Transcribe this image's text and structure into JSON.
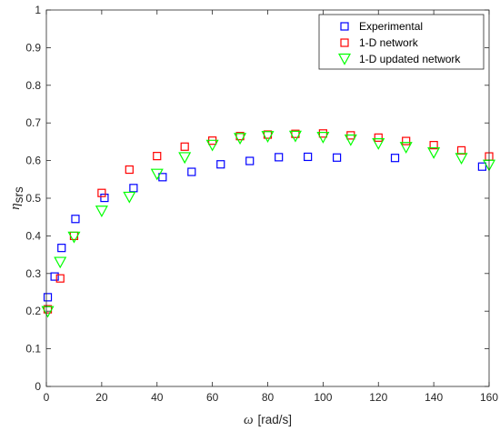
{
  "chart_data": {
    "type": "scatter",
    "title": "",
    "xlabel": {
      "symbol": "ω",
      "unit": "[rad/s]"
    },
    "ylabel": {
      "symbol": "η",
      "subscript": "srs"
    },
    "xlim": [
      0,
      160
    ],
    "ylim": [
      0,
      1
    ],
    "xticks": [
      0,
      20,
      40,
      60,
      80,
      100,
      120,
      140,
      160
    ],
    "yticks": [
      0,
      0.1,
      0.2,
      0.3,
      0.4,
      0.5,
      0.6,
      0.7,
      0.8,
      0.9,
      1
    ],
    "xtick_labels": [
      "0",
      "20",
      "40",
      "60",
      "80",
      "100",
      "120",
      "140",
      "160"
    ],
    "ytick_labels": [
      "0",
      "0.1",
      "0.2",
      "0.3",
      "0.4",
      "0.5",
      "0.6",
      "0.7",
      "0.8",
      "0.9",
      "1"
    ],
    "grid": false,
    "legend_position": "top-right",
    "series": [
      {
        "name": "Experimental",
        "marker": "square",
        "color": "#0000ff",
        "x": [
          0.5,
          3,
          5.5,
          10.5,
          21,
          31.5,
          42,
          52.5,
          63,
          73.5,
          84,
          94.5,
          105,
          126,
          157.5
        ],
        "y": [
          0.237,
          0.292,
          0.368,
          0.445,
          0.501,
          0.527,
          0.556,
          0.57,
          0.59,
          0.599,
          0.609,
          0.61,
          0.608,
          0.607,
          0.584
        ]
      },
      {
        "name": "1-D network",
        "marker": "square",
        "color": "#ff0000",
        "x": [
          0.5,
          5,
          10,
          20,
          30,
          40,
          50,
          60,
          70,
          80,
          90,
          100,
          110,
          120,
          130,
          140,
          150,
          160
        ],
        "y": [
          0.205,
          0.287,
          0.4,
          0.514,
          0.576,
          0.612,
          0.637,
          0.653,
          0.665,
          0.669,
          0.671,
          0.672,
          0.667,
          0.661,
          0.652,
          0.641,
          0.627,
          0.611
        ]
      },
      {
        "name": "1-D updated network",
        "marker": "triangle-down",
        "color": "#00ff00",
        "x": [
          0.5,
          5,
          10,
          20,
          30,
          40,
          50,
          60,
          70,
          80,
          90,
          100,
          110,
          120,
          130,
          140,
          150,
          160
        ],
        "y": [
          0.201,
          0.332,
          0.399,
          0.468,
          0.505,
          0.566,
          0.61,
          0.643,
          0.661,
          0.666,
          0.667,
          0.664,
          0.657,
          0.647,
          0.637,
          0.623,
          0.608,
          0.59
        ]
      }
    ]
  }
}
